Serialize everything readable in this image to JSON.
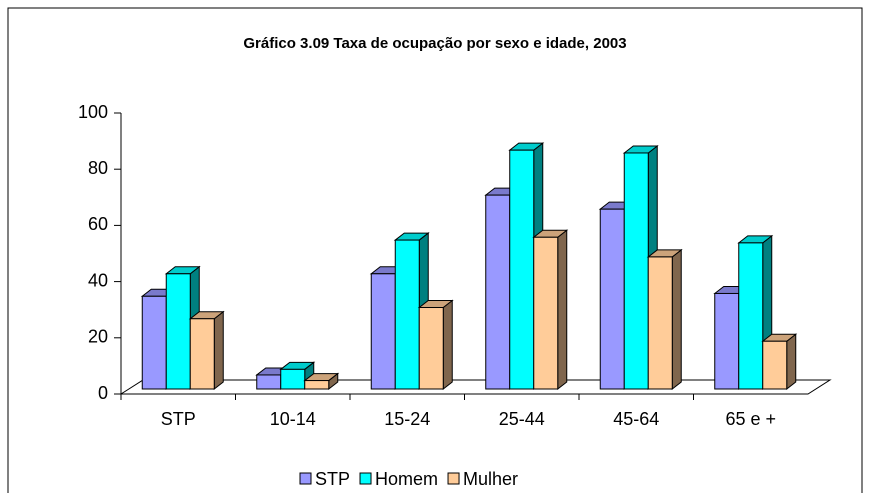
{
  "chart_data": {
    "type": "bar3d",
    "title": "Gráfico 3.09 Taxa de ocupação por sexo e idade, 2003",
    "categories": [
      "STP",
      "10-14",
      "15-24",
      "25-44",
      "45-64",
      "65 e +"
    ],
    "series": [
      {
        "name": "STP",
        "color": "#9999ff",
        "values": [
          33,
          5,
          41,
          69,
          64,
          34
        ]
      },
      {
        "name": "Homem",
        "color": "#00ffff",
        "values": [
          41,
          7,
          53,
          85,
          84,
          52
        ]
      },
      {
        "name": "Mulher",
        "color": "#ffcc99",
        "values": [
          25,
          3,
          29,
          54,
          47,
          17
        ]
      }
    ],
    "ylim": [
      0,
      100
    ],
    "yticks": [
      0,
      20,
      40,
      60,
      80,
      100
    ]
  }
}
